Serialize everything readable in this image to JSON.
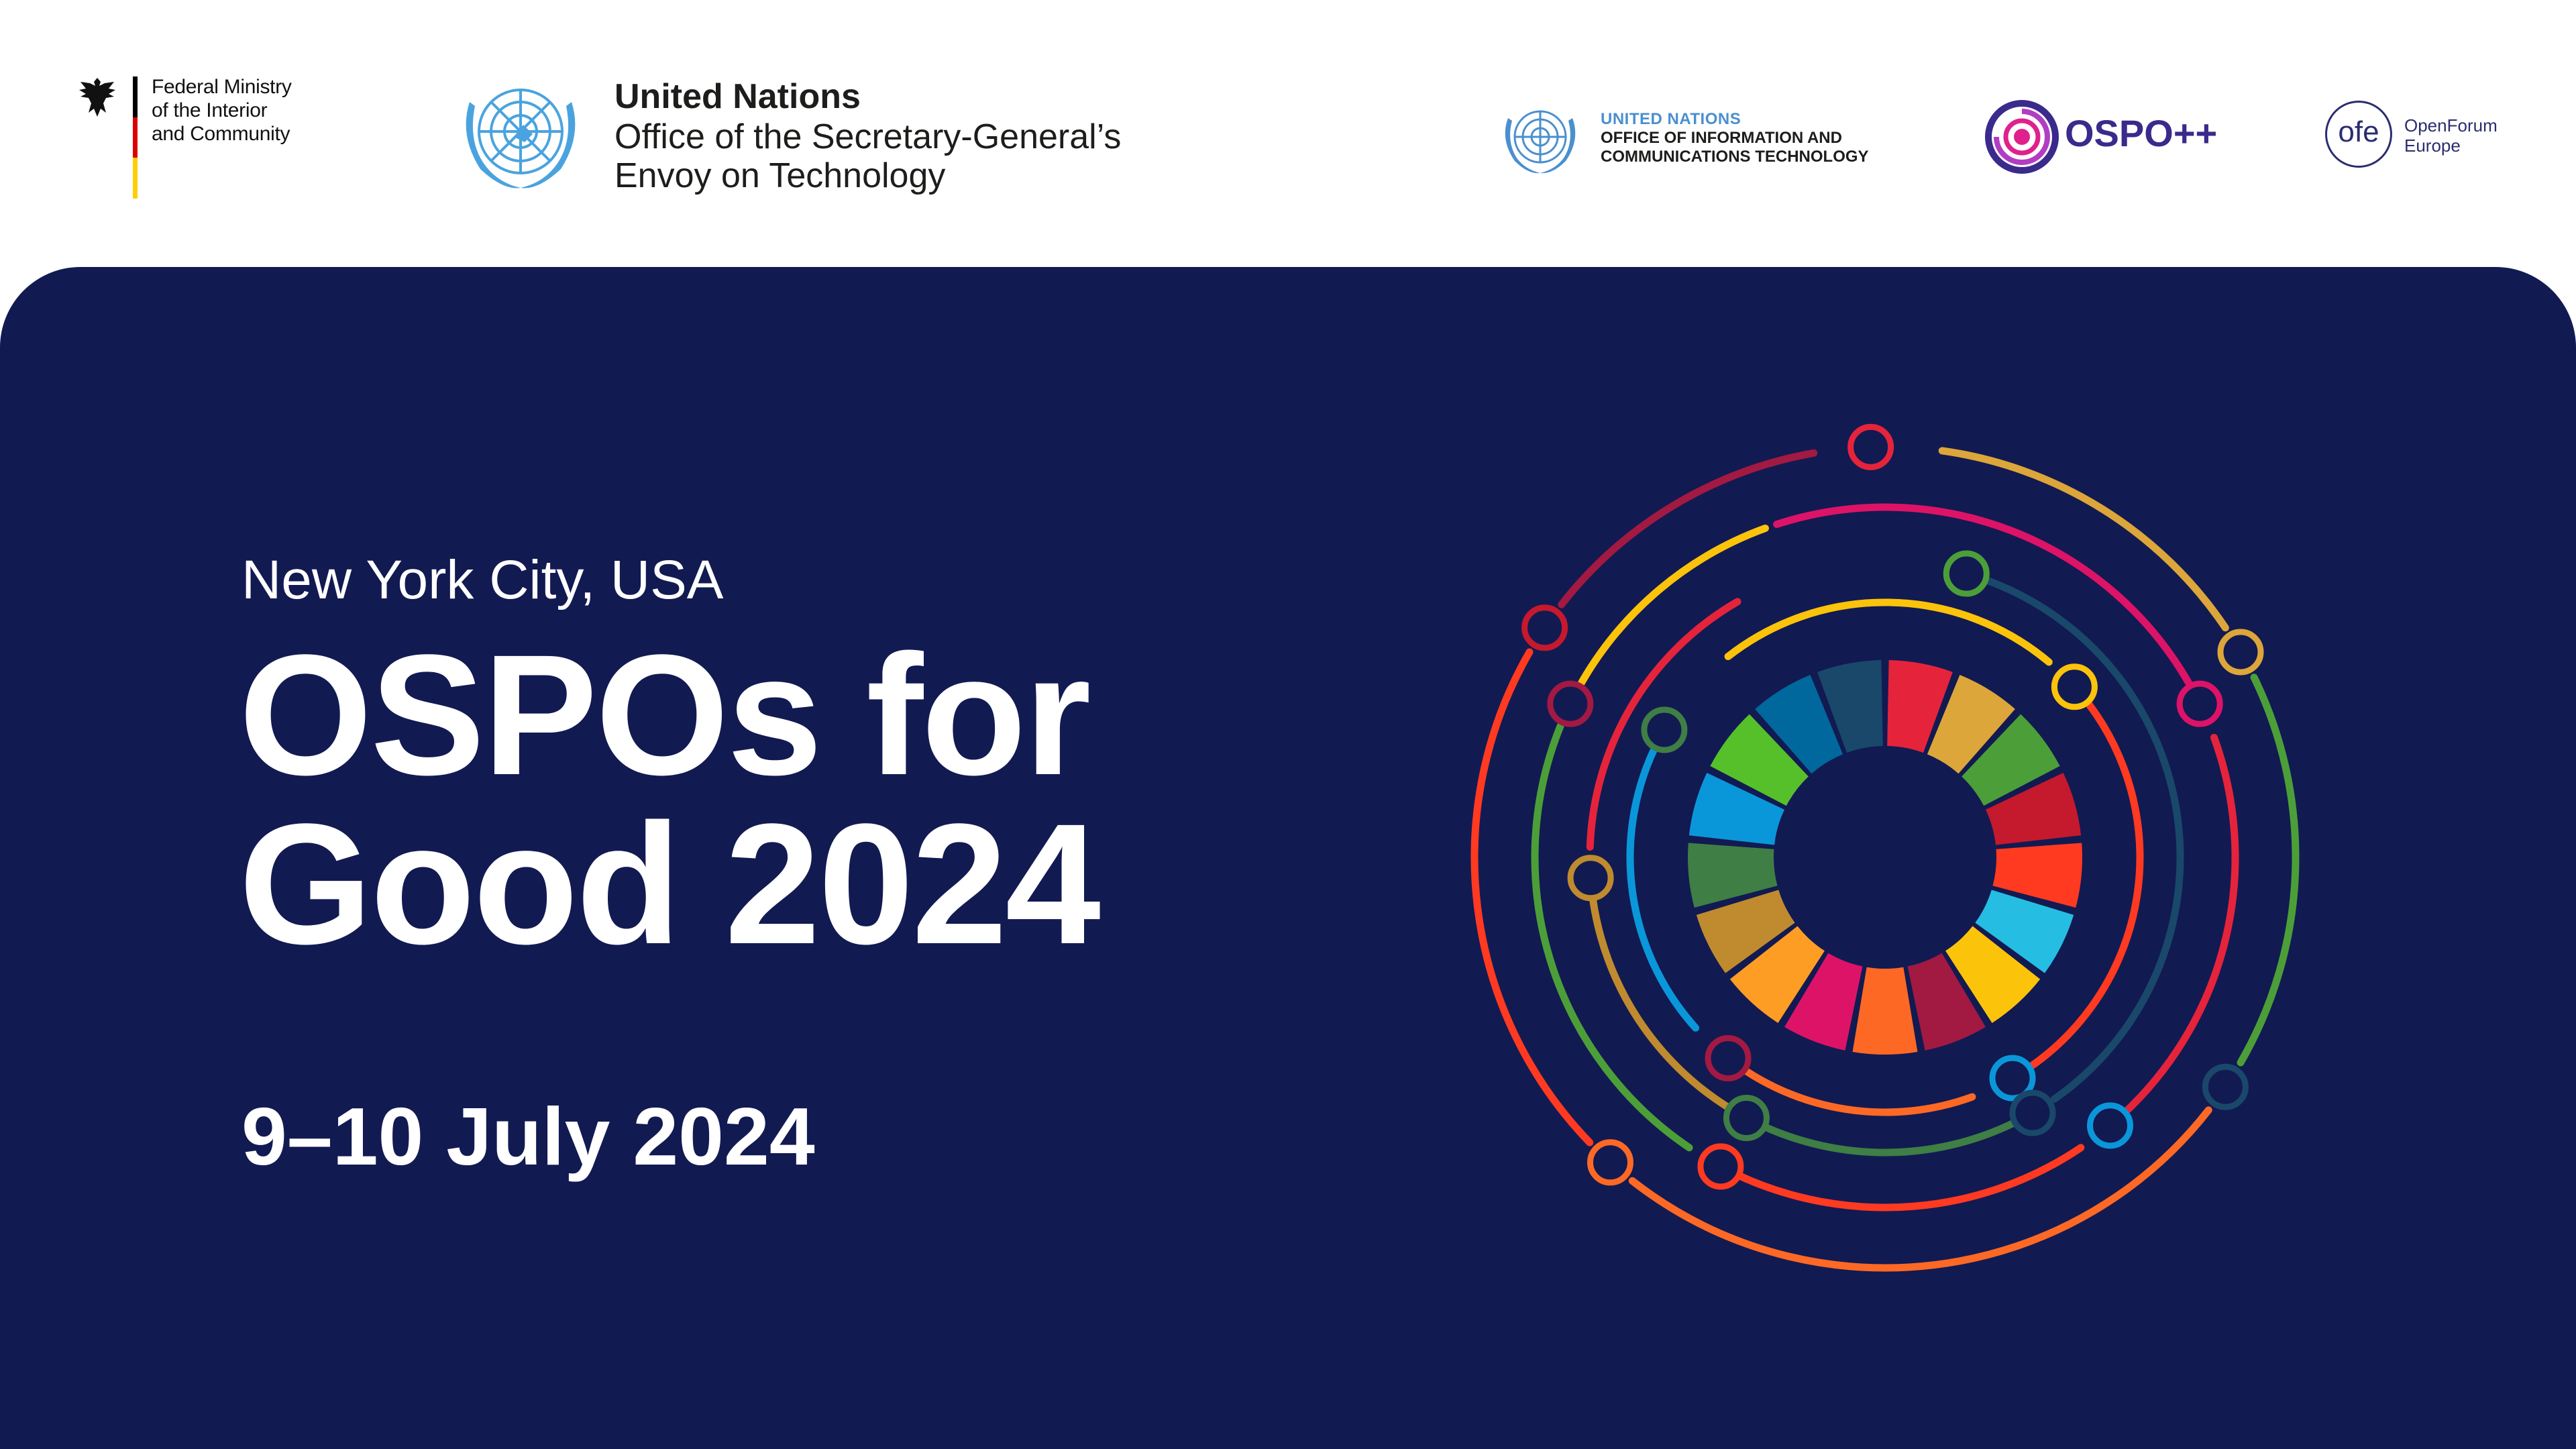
{
  "header": {
    "bmi": {
      "lines": [
        "Federal Ministry",
        "of the Interior",
        "and Community"
      ]
    },
    "un_envoy": {
      "title": "United Nations",
      "line1": "Office of the Secretary-General’s",
      "line2": "Envoy on Technology"
    },
    "un_oict": {
      "line0": "UNITED NATIONS",
      "line1": "OFFICE OF INFORMATION AND",
      "line2": "COMMUNICATIONS TECHNOLOGY"
    },
    "ospo": {
      "label": "OSPO++"
    },
    "ofe": {
      "mark": "ofe",
      "line1": "OpenForum",
      "line2": "Europe"
    }
  },
  "event": {
    "location": "New York City, USA",
    "title_line1": "OSPOs for",
    "title_line2": "Good 2024",
    "dates": "9–10 July 2024"
  },
  "colors": {
    "panel": "#121a52",
    "sdg": [
      "#e5243b",
      "#dda63a",
      "#4c9f38",
      "#c5192d",
      "#ff3a21",
      "#26bde2",
      "#fcc30b",
      "#a21942",
      "#fd6925",
      "#dd1367",
      "#fd9d24",
      "#bf8b2e",
      "#3f7e44",
      "#0a97d9",
      "#56c02b",
      "#00689d",
      "#19486a"
    ]
  }
}
